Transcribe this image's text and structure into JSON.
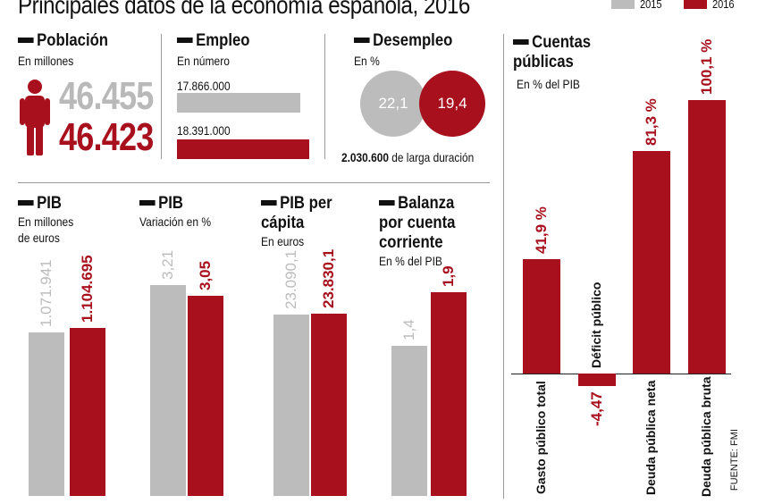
{
  "title": "Principales datos de la economía española, 2016",
  "legend": [
    {
      "label": "2015",
      "color": "#bcbcbc"
    },
    {
      "label": "2016",
      "color": "#a8101d"
    }
  ],
  "colors": {
    "y2015": "#bcbcbc",
    "y2016": "#a8101d"
  },
  "poblacion": {
    "title": "Población",
    "unit": "En millones",
    "v2015": "46.455",
    "v2016": "46.423",
    "icon": "person-icon"
  },
  "empleo": {
    "title": "Empleo",
    "unit": "En número",
    "v2015": "17.866.000",
    "v2016": "18.391.000"
  },
  "desempleo": {
    "title": "Desempleo",
    "unit": "En %",
    "v2015": "22,1",
    "v2016": "19,4",
    "larga_num": "2.030.600",
    "larga_txt": "de larga duración"
  },
  "cuentas": {
    "title_l1": "Cuentas",
    "title_l2": "públicas",
    "unit": "En % del PIB"
  },
  "pib": {
    "title": "PIB",
    "unit_l1": "En millones",
    "unit_l2": "de euros"
  },
  "pib_var": {
    "title": "PIB",
    "unit": "Variación en %"
  },
  "pib_pc": {
    "title_l1": "PIB per",
    "title_l2": "cápita",
    "unit": "En euros"
  },
  "balanza": {
    "title_l1": "Balanza",
    "title_l2": "por cuenta",
    "title_l3": "corriente",
    "unit": "En % del PIB"
  },
  "source": "FUENTE: FMI",
  "chart_data": [
    {
      "type": "bar",
      "name": "Empleo",
      "categories": [
        "2015",
        "2016"
      ],
      "values": [
        17866000,
        18391000
      ],
      "labels": [
        "17.866.000",
        "18.391.000"
      ]
    },
    {
      "type": "bar",
      "name": "PIB",
      "categories": [
        "2015",
        "2016"
      ],
      "values": [
        1071941,
        1104695
      ],
      "labels": [
        "1.071.941",
        "1.104.695"
      ]
    },
    {
      "type": "bar",
      "name": "PIB variación",
      "categories": [
        "2015",
        "2016"
      ],
      "values": [
        3.21,
        3.05
      ],
      "labels": [
        "3,21",
        "3,05"
      ]
    },
    {
      "type": "bar",
      "name": "PIB per cápita",
      "categories": [
        "2015",
        "2016"
      ],
      "values": [
        23090.1,
        23830.1
      ],
      "labels": [
        "23.090,1",
        "23.830,1"
      ]
    },
    {
      "type": "bar",
      "name": "Balanza por cuenta corriente",
      "categories": [
        "2015",
        "2016"
      ],
      "values": [
        1.4,
        1.9
      ],
      "labels": [
        "1,4",
        "1,9"
      ]
    },
    {
      "type": "bar",
      "name": "Cuentas públicas",
      "categories": [
        "Gasto público total",
        "Déficit público",
        "Deuda pública neta",
        "Deuda pública bruta"
      ],
      "values": [
        41.9,
        -4.47,
        81.3,
        100.1
      ],
      "labels": [
        "41,9 %",
        "-4,47",
        "81,3 %",
        "100,1 %"
      ]
    }
  ]
}
